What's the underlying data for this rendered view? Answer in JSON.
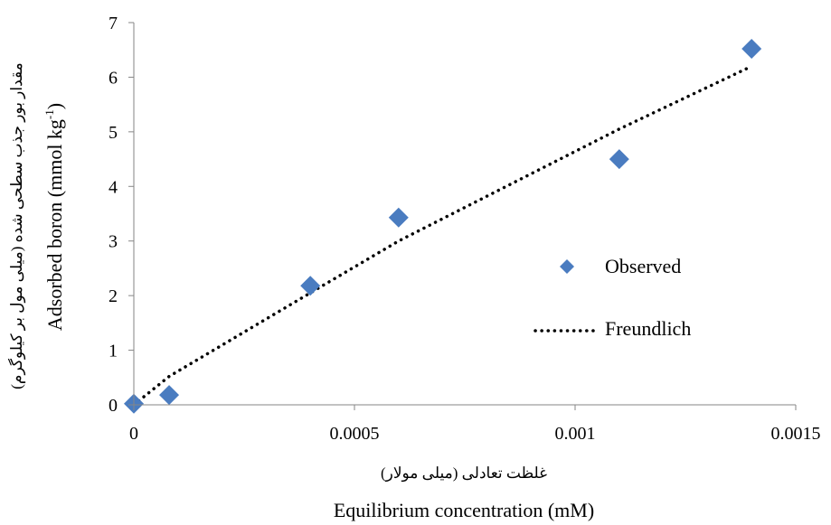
{
  "chart_data": {
    "type": "scatter",
    "xlabel": "Equilibrium concentration (mM)",
    "xlabel_fa": "غلظت تعادلی  (میلی مولار)",
    "ylabel_main": "Adsorbed boron (mmol kg",
    "ylabel_sup": "-1",
    "ylabel_close": ")",
    "ylabel_fa": "مقدار بور جذب سطحی شده (میلی مول بر کیلوگرم)",
    "xlim": [
      0,
      0.0015
    ],
    "ylim": [
      0,
      7
    ],
    "x_ticks": [
      0,
      0.0005,
      0.001,
      0.0015
    ],
    "x_tick_labels": [
      "0",
      "0.0005",
      "0.001",
      "0.0015"
    ],
    "y_ticks": [
      0,
      1,
      2,
      3,
      4,
      5,
      6,
      7
    ],
    "y_tick_labels": [
      "0",
      "1",
      "2",
      "3",
      "4",
      "5",
      "6",
      "7"
    ],
    "grid": false,
    "legend_position": "right",
    "series": [
      {
        "name": "Observed",
        "kind": "scatter",
        "marker": "diamond",
        "color": "#4a7cc0",
        "x": [
          0,
          8e-05,
          0.0004,
          0.0006,
          0.0011,
          0.0014
        ],
        "y": [
          0.02,
          0.18,
          2.18,
          3.43,
          4.5,
          6.52
        ]
      },
      {
        "name": "Freundlich",
        "kind": "line",
        "style": "dotted",
        "color": "#000000",
        "x": [
          0,
          8e-05,
          0.0004,
          0.0006,
          0.0011,
          0.0014
        ],
        "y": [
          0,
          0.52,
          2.05,
          3.0,
          5.05,
          6.2
        ]
      }
    ]
  }
}
